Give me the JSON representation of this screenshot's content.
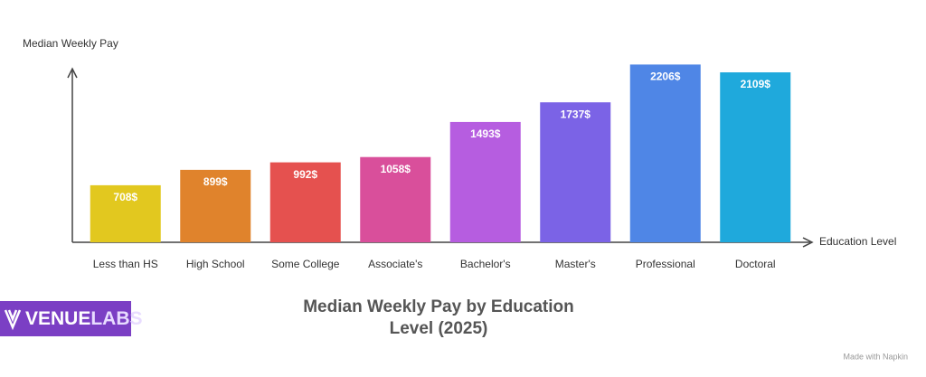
{
  "chart_data": {
    "type": "bar",
    "title": "Median Weekly Pay by Education Level (2025)",
    "y_label": "Median Weekly Pay",
    "x_label": "Education Level",
    "categories": [
      "Less than HS",
      "High School",
      "Some College",
      "Associate's",
      "Bachelor's",
      "Master's",
      "Professional",
      "Doctoral"
    ],
    "values": [
      708,
      899,
      992,
      1058,
      1493,
      1737,
      2206,
      2109
    ],
    "value_labels": [
      "708$",
      "899$",
      "992$",
      "1058$",
      "1493$",
      "1737$",
      "2206$",
      "2109$"
    ],
    "colors": [
      "#e2c81f",
      "#e0832c",
      "#e5514f",
      "#d94f9b",
      "#b65de0",
      "#7b63e6",
      "#4f86e6",
      "#1fa9dc"
    ],
    "ylim": [
      0,
      2300
    ]
  },
  "brand": [
    "VENUE",
    "LABS"
  ],
  "footer": "Made with Napkin"
}
